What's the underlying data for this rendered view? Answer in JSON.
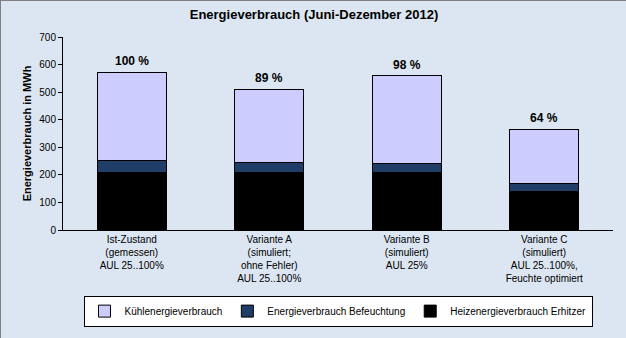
{
  "chart_data": {
    "type": "bar",
    "title": "Energieverbrauch (Juni-Dezember 2012)",
    "y_label": "Energieverbrauch in MWh",
    "categories": [
      "Ist-Zustand\n(gemessen)\nAUL 25..100%",
      "Variante A\n(simuliert;\nohne Fehler)\nAUL 25..100%",
      "Variante B\n(simuliert)\nAUL 25%",
      "Variante C\n(simuliert)\nAUL 25..100%,\nFeuchte optimiert"
    ],
    "series": [
      {
        "name": "Heizenergieverbrauch Erhitzer",
        "color": "#000000",
        "values": [
          207,
          207,
          207,
          140
        ]
      },
      {
        "name": "Energieverbrauch Befeuchtung",
        "color": "#1f3d66",
        "values": [
          45,
          38,
          35,
          27
        ]
      },
      {
        "name": "Kühlenergieverbrauch",
        "color": "#ccccff",
        "values": [
          320,
          265,
          318,
          198
        ]
      }
    ],
    "annotations": [
      "100 %",
      "89 %",
      "98 %",
      "64 %"
    ],
    "stacked": true,
    "ylim": [
      0,
      700
    ],
    "yticks": [
      0,
      100,
      200,
      300,
      400,
      500,
      600,
      700
    ],
    "grid": false,
    "legend": "bottom"
  }
}
